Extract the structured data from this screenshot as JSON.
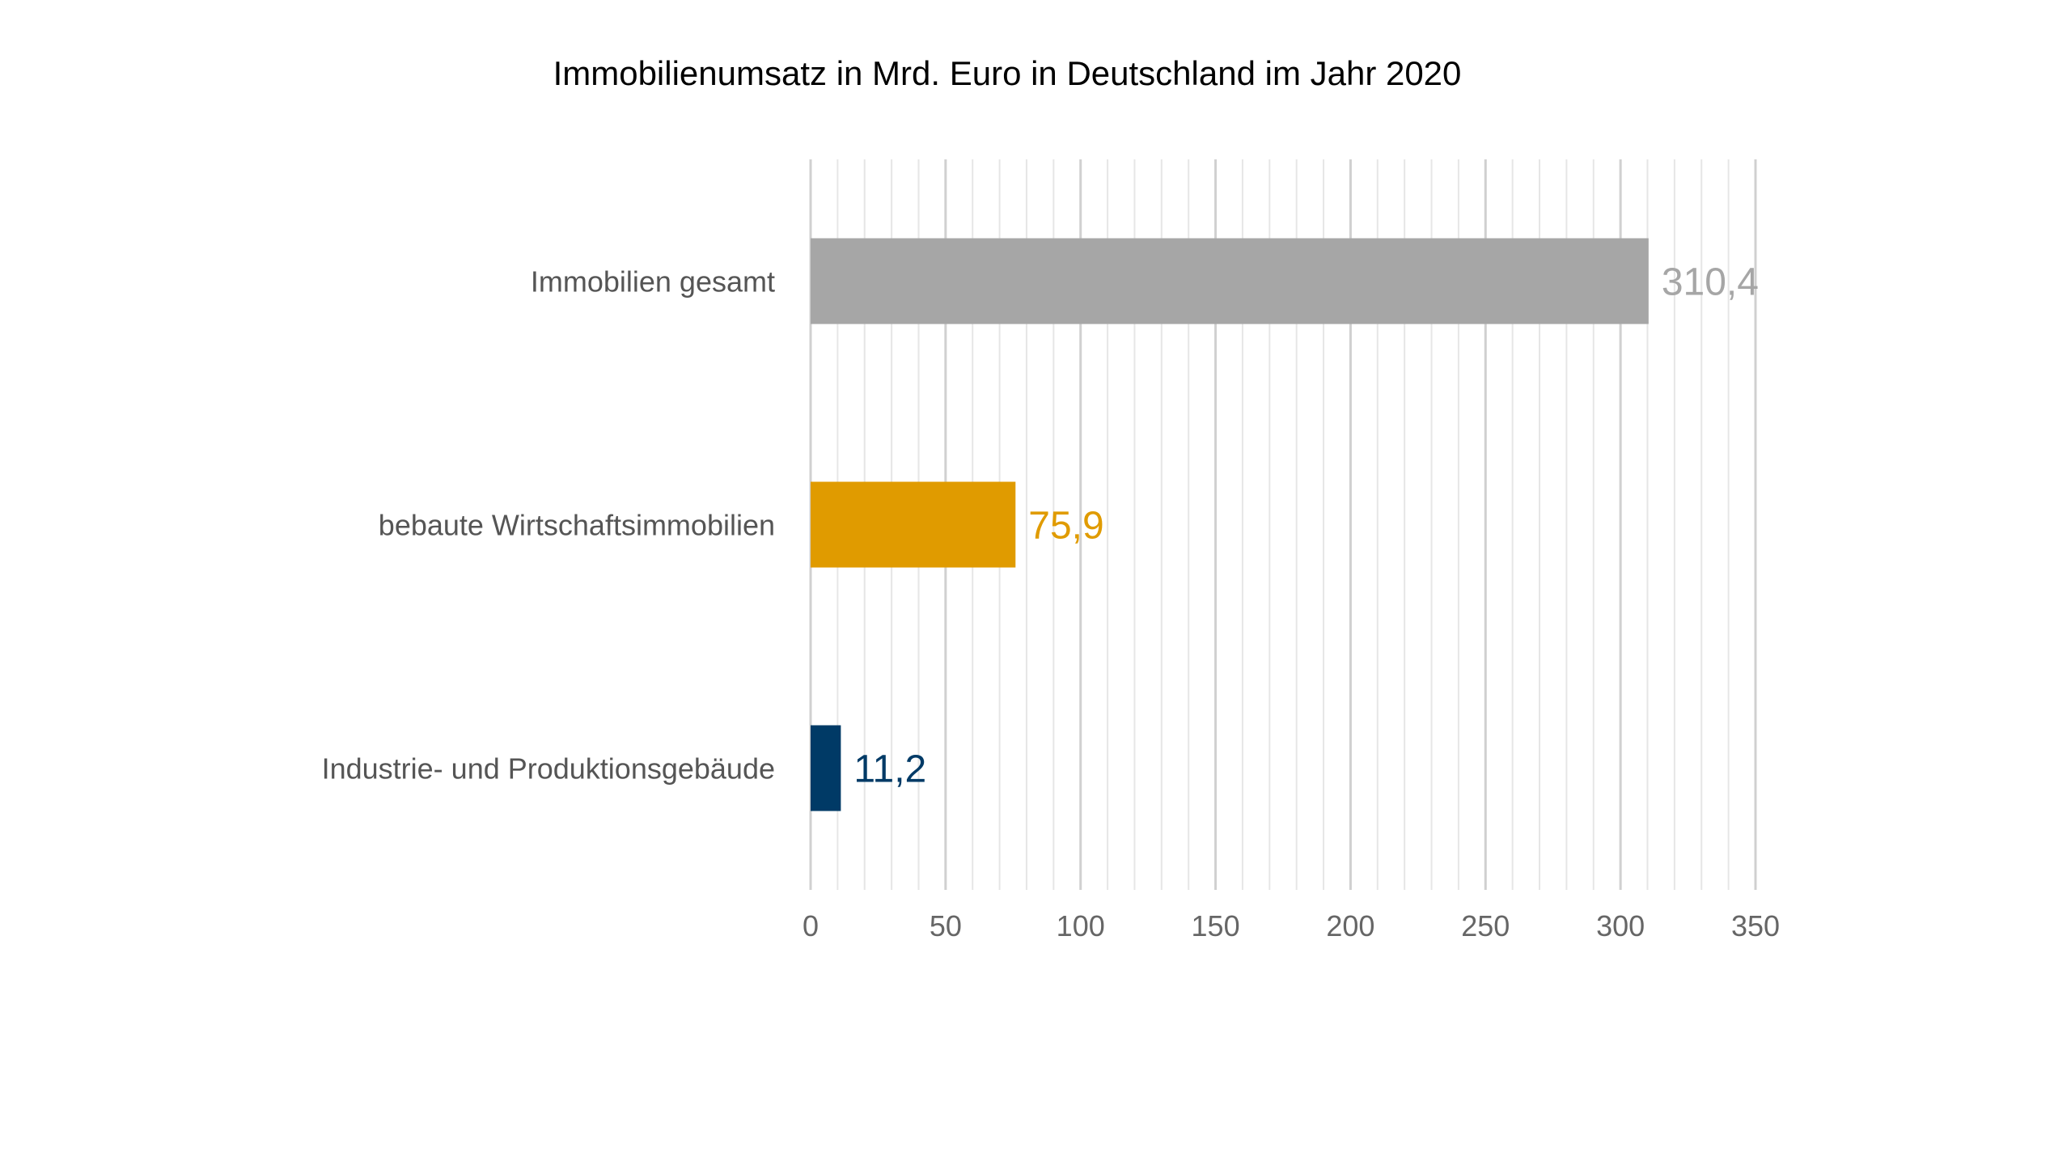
{
  "chart_data": {
    "type": "bar",
    "orientation": "horizontal",
    "title": "Immobilienumsatz in Mrd. Euro in Deutschland im Jahr 2020",
    "categories": [
      "Immobilien gesamt",
      "bebaute Wirtschaftsimmobilien",
      "Industrie- und Produktionsgebäude"
    ],
    "values": [
      310.4,
      75.9,
      11.2
    ],
    "value_labels": [
      "310,4",
      "75,9",
      "11,2"
    ],
    "colors": [
      "#a6a6a6",
      "#e09b00",
      "#003a66"
    ],
    "xlim": [
      0,
      350
    ],
    "xticks": [
      0,
      50,
      100,
      150,
      200,
      250,
      300,
      350
    ],
    "xtick_labels": [
      "0",
      "50",
      "100",
      "150",
      "200",
      "250",
      "300",
      "350"
    ],
    "minor_tick_step": 10,
    "xlabel": "",
    "ylabel": "",
    "grid": true,
    "legend": "none"
  }
}
